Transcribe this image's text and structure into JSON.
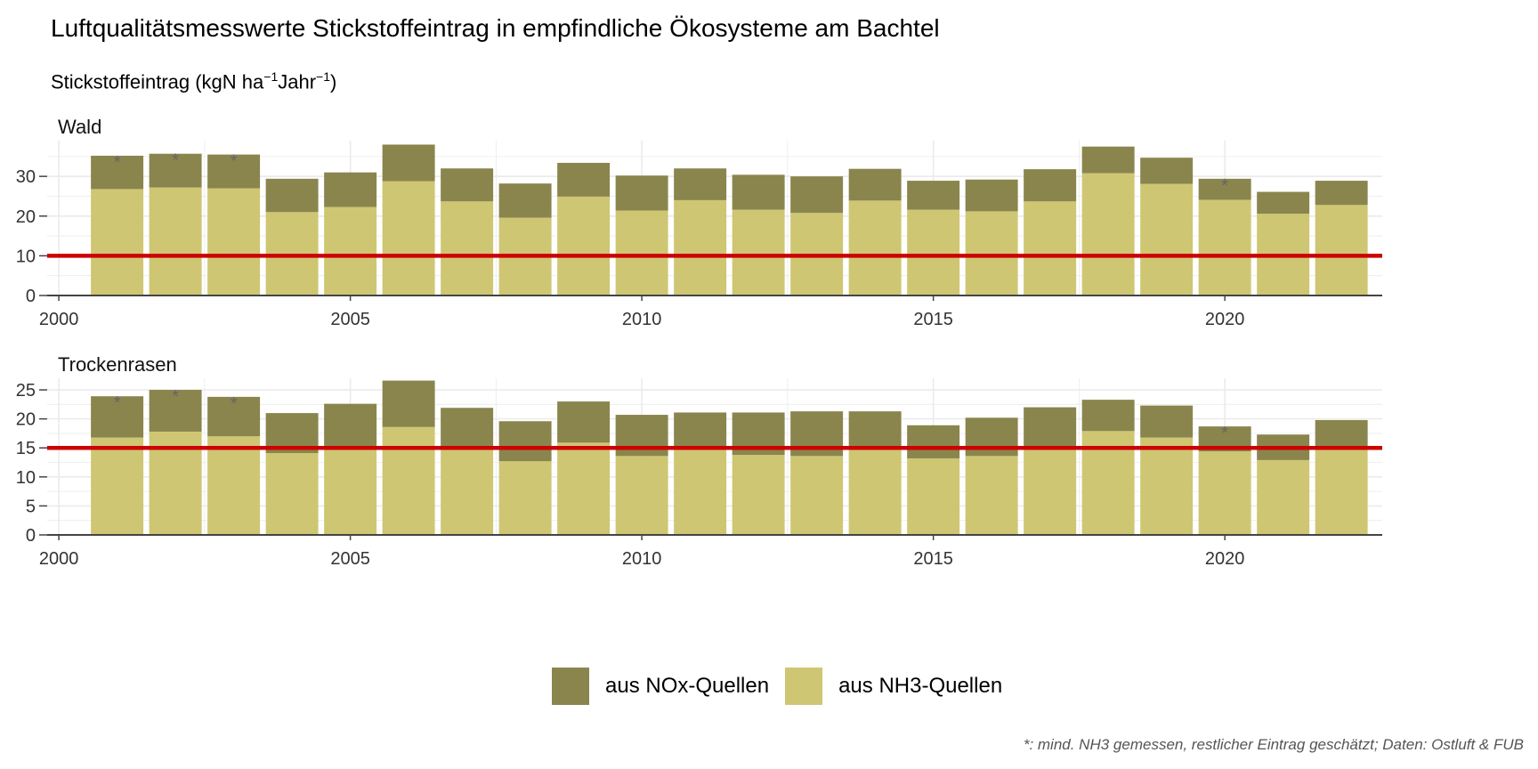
{
  "title": "Luftqualitätsmesswerte Stickstoffeintrag in empfindliche Ökosysteme am Bachtel",
  "subtitle": {
    "main": "Stickstoffeintrag (kgN ha",
    "sup1": "−1",
    "mid": "Jahr",
    "sup2": "−1",
    "end": ")"
  },
  "caption": "*: mind. NH3 gemessen, restlicher Eintrag geschätzt; Daten: Ostluft & FUB",
  "colors": {
    "nox": "#8a854d",
    "nh3": "#cec672",
    "limit": "#cc0000",
    "grid": "#ebebeb",
    "axis": "#444444",
    "marker": "#666666"
  },
  "legend": [
    {
      "label": "aus NOx-Quellen",
      "color": "#8a854d"
    },
    {
      "label": "aus NH3-Quellen",
      "color": "#cec672"
    }
  ],
  "chart_data": [
    {
      "type": "bar",
      "stacked": true,
      "panel": "Wald",
      "x": [
        2001,
        2002,
        2003,
        2004,
        2005,
        2006,
        2007,
        2008,
        2009,
        2010,
        2011,
        2012,
        2013,
        2014,
        2015,
        2016,
        2017,
        2018,
        2019,
        2020,
        2021,
        2022
      ],
      "series": [
        {
          "name": "aus NH3-Quellen",
          "values": [
            26.8,
            27.2,
            27.0,
            21.0,
            22.3,
            28.8,
            23.7,
            19.6,
            24.9,
            21.4,
            24.0,
            21.6,
            20.8,
            23.9,
            21.6,
            21.2,
            23.7,
            30.8,
            28.1,
            24.1,
            20.6,
            22.8
          ]
        },
        {
          "name": "aus NOx-Quellen",
          "values": [
            8.4,
            8.5,
            8.5,
            8.4,
            8.7,
            9.2,
            8.3,
            8.6,
            8.5,
            8.8,
            8.0,
            8.8,
            9.2,
            8.0,
            7.3,
            8.0,
            8.1,
            6.7,
            6.6,
            5.3,
            5.5,
            6.1
          ]
        }
      ],
      "asterisk_years": [
        2001,
        2002,
        2003,
        2020
      ],
      "limit": 10,
      "ylim": [
        0,
        39
      ],
      "yticks": [
        0,
        10,
        20,
        30
      ],
      "xticks": [
        2000,
        2005,
        2010,
        2015,
        2020
      ],
      "xlim": [
        1999.8,
        2022.7
      ]
    },
    {
      "type": "bar",
      "stacked": true,
      "panel": "Trockenrasen",
      "x": [
        2001,
        2002,
        2003,
        2004,
        2005,
        2006,
        2007,
        2008,
        2009,
        2010,
        2011,
        2012,
        2013,
        2014,
        2015,
        2016,
        2017,
        2018,
        2019,
        2020,
        2021,
        2022
      ],
      "series": [
        {
          "name": "aus NH3-Quellen",
          "values": [
            16.8,
            17.8,
            17.0,
            14.1,
            15.3,
            18.6,
            15.1,
            12.7,
            15.9,
            13.6,
            15.0,
            13.8,
            13.6,
            15.0,
            13.2,
            13.6,
            15.1,
            17.9,
            16.8,
            14.4,
            12.9,
            15.0
          ]
        },
        {
          "name": "aus NOx-Quellen",
          "values": [
            7.1,
            7.2,
            6.8,
            6.9,
            7.3,
            8.0,
            6.8,
            6.9,
            7.1,
            7.1,
            6.1,
            7.3,
            7.7,
            6.3,
            5.7,
            6.6,
            6.9,
            5.4,
            5.5,
            4.3,
            4.4,
            4.8
          ]
        }
      ],
      "asterisk_years": [
        2001,
        2002,
        2003,
        2020
      ],
      "limit": 15,
      "ylim": [
        0,
        27
      ],
      "yticks": [
        0,
        5,
        10,
        15,
        20,
        25
      ],
      "xticks": [
        2000,
        2005,
        2010,
        2015,
        2020
      ],
      "xlim": [
        1999.8,
        2022.7
      ]
    }
  ]
}
